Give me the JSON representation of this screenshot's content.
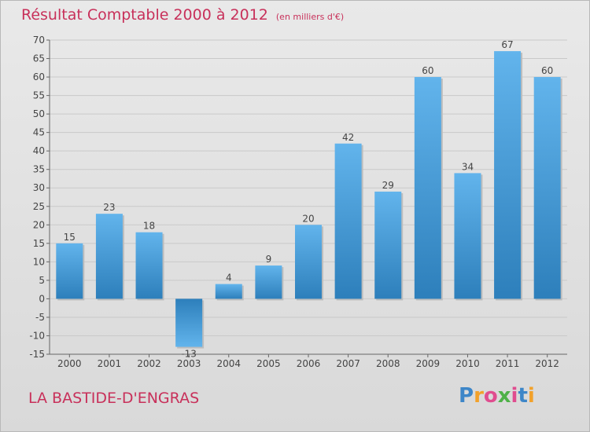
{
  "title": "Résultat Comptable 2000 à 2012",
  "subtitle": "(en milliers d'€)",
  "commune": "LA BASTIDE-D'ENGRAS",
  "logo_text": "Proxiti",
  "logo_colors": [
    "#3d86c8",
    "#f2a12a",
    "#e04d8f",
    "#4fb148",
    "#e04d8f",
    "#3d86c8",
    "#f2a12a"
  ],
  "colors": {
    "title": "#c8305a",
    "bar_light": "#62b4ec",
    "bar_dark": "#2d7fbb",
    "grid": "#cfcfcf"
  },
  "chart_data": {
    "type": "bar",
    "categories": [
      "2000",
      "2001",
      "2002",
      "2003",
      "2004",
      "2005",
      "2006",
      "2007",
      "2008",
      "2009",
      "2010",
      "2011",
      "2012"
    ],
    "values": [
      15,
      23,
      18,
      -13,
      4,
      9,
      20,
      42,
      29,
      60,
      34,
      67,
      60
    ],
    "ylim": [
      -15,
      70
    ],
    "yticks": [
      -15,
      -10,
      -5,
      0,
      5,
      10,
      15,
      20,
      25,
      30,
      35,
      40,
      45,
      50,
      55,
      60,
      65,
      70
    ],
    "title": "Résultat Comptable 2000 à 2012",
    "xlabel": "",
    "ylabel": ""
  }
}
